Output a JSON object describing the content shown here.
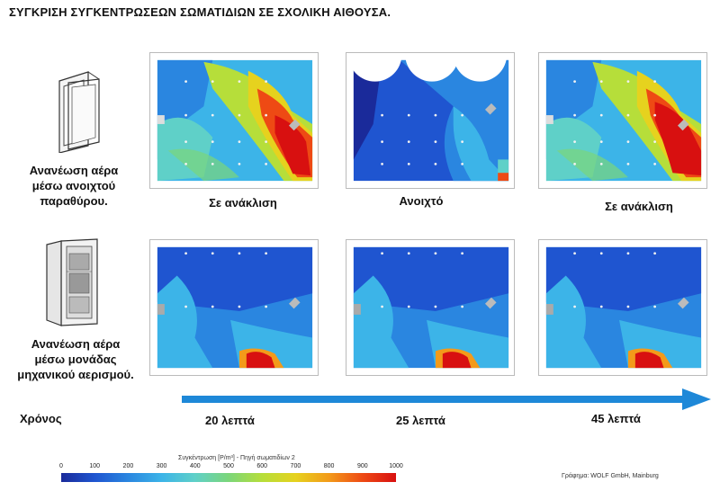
{
  "title": "ΣΥΓΚΡΙΣΗ ΣΥΓΚΕΝΤΡΩΣΕΩΝ ΣΩΜΑΤΙΔΙΩΝ ΣΕ ΣΧΟΛΙΚΗ ΑΙΘΟΥΣΑ.",
  "rows": [
    {
      "label_lines": [
        "Ανανέωση αέρα",
        "μέσω ανοιχτού",
        "παραθύρου."
      ]
    },
    {
      "label_lines": [
        "Ανανέωση αέρα",
        "μέσω μονάδας",
        "μηχανικού αερισμού."
      ]
    }
  ],
  "window_states": [
    "Σε ανάκλιση",
    "Ανοιχτό",
    "Σε ανάκλιση"
  ],
  "time": {
    "label": "Χρόνος",
    "ticks": [
      "20 λεπτά",
      "25 λεπτά",
      "45 λεπτά"
    ]
  },
  "colorbar": {
    "title": "Συγκέντρωση [P/m³] - Πηγή σωματιδίων 2",
    "ticks": [
      "0",
      "100",
      "200",
      "300",
      "400",
      "500",
      "600",
      "700",
      "800",
      "900",
      "1000"
    ],
    "colors": [
      "#1a2a9a",
      "#1f55d0",
      "#2a86e0",
      "#3cb4e8",
      "#5fd0c8",
      "#7bd67a",
      "#b6de3a",
      "#e6d21e",
      "#f39a1a",
      "#ee4a14",
      "#d81010"
    ]
  },
  "credit": "Γράφημα: WOLF GmbH, Mainburg"
}
